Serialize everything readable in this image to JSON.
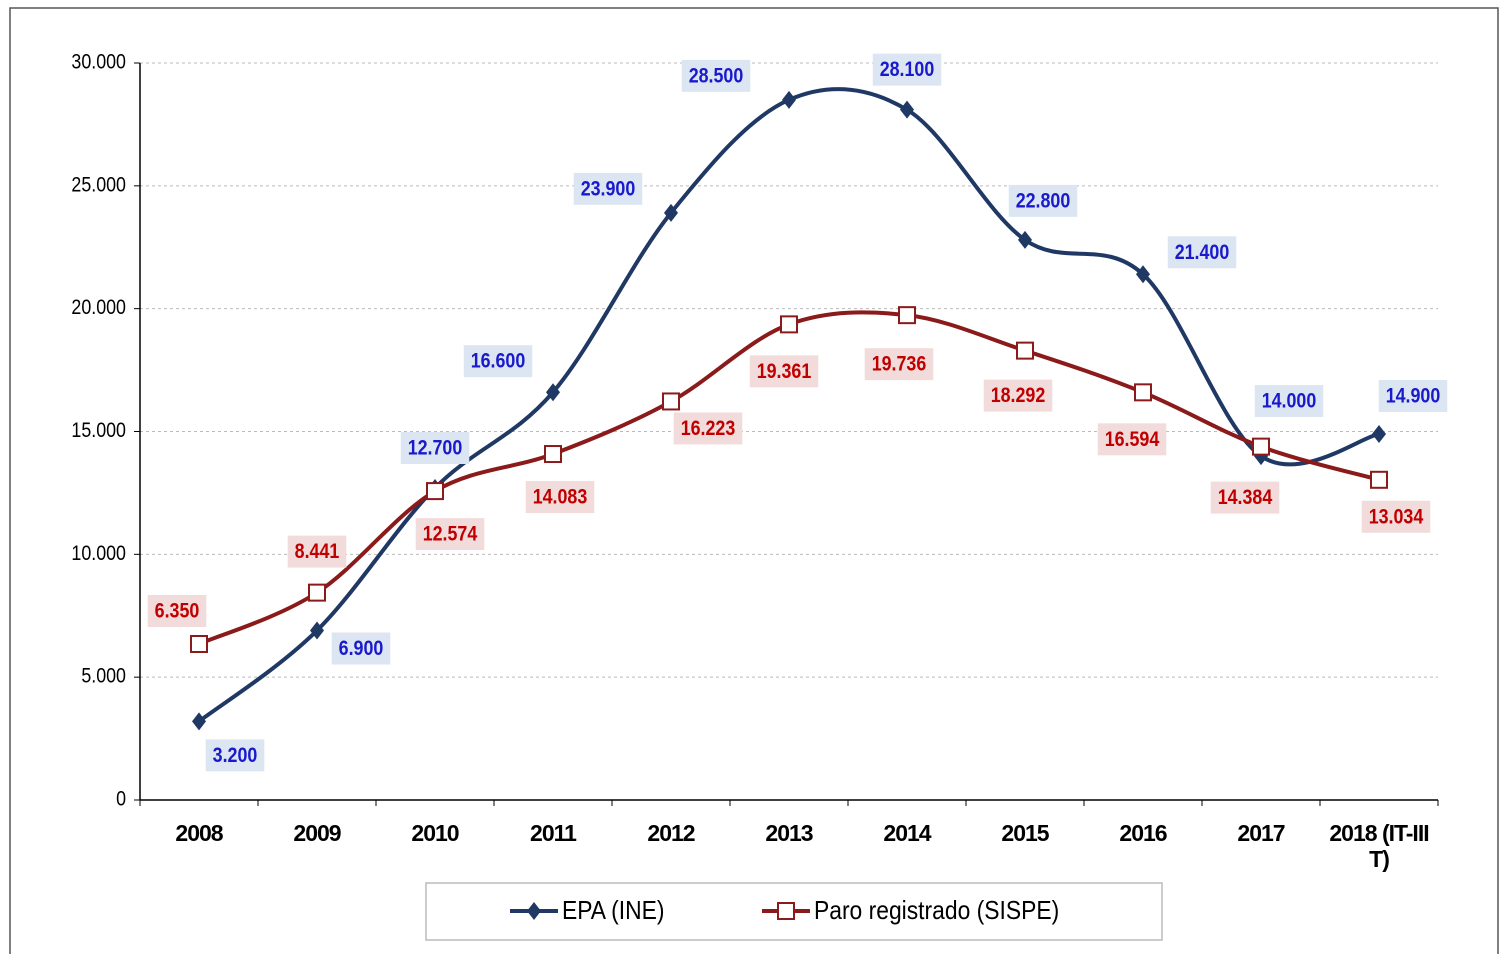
{
  "chart_data": {
    "type": "line",
    "categories": [
      "2008",
      "2009",
      "2010",
      "2011",
      "2012",
      "2013",
      "2014",
      "2015",
      "2016",
      "2017",
      "2018 (IT-III T)"
    ],
    "series": [
      {
        "name": "EPA (INE)",
        "color": "#1f3864",
        "marker": "diamond",
        "values": [
          3200,
          6900,
          12700,
          16600,
          23900,
          28500,
          28100,
          22800,
          21400,
          14000,
          14900
        ],
        "value_labels": [
          "3.200",
          "6.900",
          "12.700",
          "16.600",
          "23.900",
          "28.500",
          "28.100",
          "22.800",
          "21.400",
          "14.000",
          "14.900"
        ]
      },
      {
        "name": "Paro registrado (SISPE)",
        "color": "#8b1a1a",
        "marker": "square",
        "values": [
          6350,
          8441,
          12574,
          14083,
          16223,
          19361,
          19736,
          18292,
          16594,
          14384,
          13034
        ],
        "value_labels": [
          "6.350",
          "8.441",
          "12.574",
          "14.083",
          "16.223",
          "19.361",
          "19.736",
          "18.292",
          "16.594",
          "14.384",
          "13.034"
        ]
      }
    ],
    "ylim": [
      0,
      30000
    ],
    "yticks": [
      0,
      {
        "value": 5000,
        "label": "5.000"
      },
      {
        "value": 10000,
        "label": "10.000"
      },
      {
        "value": 15000,
        "label": "15.000"
      },
      {
        "value": 20000,
        "label": "20.000"
      },
      {
        "value": 25000,
        "label": "25.000"
      },
      {
        "value": 30000,
        "label": "30.000"
      }
    ],
    "grid": true,
    "legend": "bottom"
  }
}
